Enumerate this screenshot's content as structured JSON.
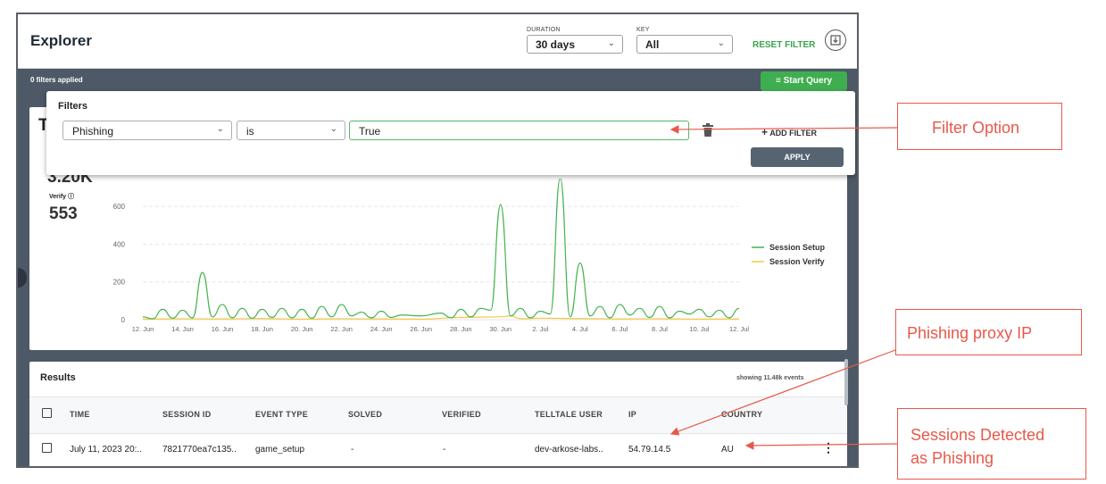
{
  "header": {
    "title": "Explorer",
    "duration_label": "DURATION",
    "duration_value": "30 days",
    "key_label": "KEY",
    "key_value": "All",
    "reset_label": "RESET FILTER"
  },
  "filterbar": {
    "applied_text": "0 filters applied",
    "start_query_label": "Start Query"
  },
  "filters_popup": {
    "title": "Filters",
    "field_value": "Phishing",
    "operator_value": "is",
    "value_input": "True",
    "add_filter_label": "ADD FILTER",
    "apply_label": "APPLY"
  },
  "summary": {
    "title_partial": "T",
    "setup_partial": "3.20K",
    "verify_label": "Verify",
    "verify_value": "553"
  },
  "colors": {
    "session_setup": "#46b34f",
    "session_verify": "#f5c842",
    "accent_green": "#3fae50",
    "annotation_red": "#e8584a"
  },
  "chart_data": {
    "type": "line",
    "y_ticks": [
      "0",
      "200",
      "400",
      "600"
    ],
    "ylim": [
      0,
      700
    ],
    "x_ticks": [
      "12. Jun",
      "14. Jun",
      "16. Jun",
      "18. Jun",
      "20. Jun",
      "22. Jun",
      "24. Jun",
      "26. Jun",
      "28. Jun",
      "30. Jun",
      "2. Jul",
      "4. Jul",
      "6. Jul",
      "8. Jul",
      "10. Jul",
      "12. Jul"
    ],
    "x_range_days": [
      0,
      30
    ],
    "series": [
      {
        "name": "Session Setup",
        "color": "#46b34f",
        "x": [
          0,
          0.5,
          1,
          1.5,
          2,
          2.5,
          3,
          3.5,
          4,
          4.5,
          5,
          5.5,
          6,
          6.5,
          7,
          7.5,
          8,
          8.5,
          9,
          9.5,
          10,
          10.5,
          11,
          11.5,
          12,
          12.5,
          13,
          14,
          15,
          15.5,
          16,
          16.5,
          17,
          17.5,
          18,
          18.5,
          19,
          19.5,
          20,
          20.5,
          21,
          21.5,
          22,
          22.5,
          23,
          23.5,
          24,
          24.5,
          25,
          25.5,
          26,
          26.5,
          27,
          27.5,
          28,
          28.5,
          29,
          29.5,
          30
        ],
        "values": [
          15,
          5,
          55,
          8,
          50,
          10,
          250,
          15,
          80,
          10,
          60,
          8,
          55,
          12,
          60,
          10,
          55,
          8,
          70,
          15,
          80,
          20,
          40,
          10,
          45,
          12,
          25,
          20,
          35,
          10,
          55,
          15,
          60,
          50,
          610,
          20,
          60,
          10,
          45,
          30,
          750,
          15,
          300,
          20,
          70,
          10,
          80,
          25,
          60,
          12,
          70,
          10,
          45,
          30,
          55,
          15,
          50,
          10,
          60
        ]
      },
      {
        "name": "Session Verify",
        "color": "#f5c842",
        "x": [
          0,
          2,
          4,
          6,
          8,
          10,
          12,
          14,
          16,
          18,
          18.5,
          19,
          20,
          22,
          24,
          26,
          28,
          30
        ],
        "values": [
          3,
          5,
          4,
          6,
          3,
          5,
          4,
          3,
          12,
          15,
          20,
          5,
          8,
          6,
          4,
          5,
          3,
          4
        ]
      }
    ]
  },
  "results": {
    "title": "Results",
    "showing_text": "showing 11.48k events",
    "columns": [
      "TIME",
      "SESSION ID",
      "EVENT TYPE",
      "SOLVED",
      "VERIFIED",
      "TELLTALE USER",
      "IP",
      "COUNTRY"
    ],
    "rows": [
      [
        "July 11, 2023 20:..",
        "7821770ea7c135..",
        "game_setup",
        "-",
        "-",
        "dev-arkose-labs..",
        "54.79.14.5",
        "AU"
      ]
    ]
  },
  "annotations": [
    {
      "text": "Filter Option"
    },
    {
      "text": "Phishing proxy IP"
    },
    {
      "text": "Sessions Detected\nas Phishing"
    }
  ]
}
